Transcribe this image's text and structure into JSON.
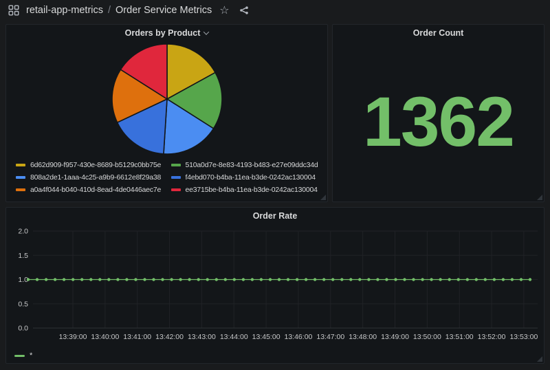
{
  "header": {
    "breadcrumb_folder": "retail-app-metrics",
    "breadcrumb_separator": "/",
    "breadcrumb_dashboard": "Order Service Metrics",
    "icons": [
      "apps-icon",
      "star-icon",
      "share-alt-icon"
    ]
  },
  "colors": {
    "page_bg": "#191b1d",
    "panel_bg": "#131619",
    "grid_line": "#202226",
    "axis_line": "#2c3235",
    "stat_green": "#73BF69"
  },
  "panels": {
    "orders_by_product": {
      "title": "Orders by Product",
      "chart_data": {
        "type": "pie",
        "title": "Orders by Product",
        "legend_position": "bottom",
        "slices": [
          {
            "label": "6d62d909-f957-430e-8689-b5129c0bb75e",
            "value": 17,
            "color": "#C9A514"
          },
          {
            "label": "510a0d7e-8e83-4193-b483-e27e09ddc34d",
            "value": 17,
            "color": "#56A64B"
          },
          {
            "label": "808a2de1-1aaa-4c25-a9b9-6612e8f29a38",
            "value": 17,
            "color": "#4B8DF2"
          },
          {
            "label": "f4ebd070-b4ba-11ea-b3de-0242ac130004",
            "value": 17,
            "color": "#3871DC"
          },
          {
            "label": "a0a4f044-b040-410d-8ead-4de0446aec7e",
            "value": 16,
            "color": "#DE700D"
          },
          {
            "label": "ee3715be-b4ba-11ea-b3de-0242ac130004",
            "value": 16,
            "color": "#E0273C"
          }
        ]
      }
    },
    "order_count": {
      "title": "Order Count",
      "value": "1362",
      "color": "#73BF69",
      "chart_data": {
        "type": "stat",
        "title": "Order Count",
        "value": 1362
      }
    },
    "order_rate": {
      "title": "Order Rate",
      "chart_data": {
        "type": "line",
        "title": "Order Rate",
        "series": [
          {
            "name": "*",
            "color": "#73BF69",
            "constant_value": 1.0
          }
        ],
        "num_points": 57,
        "ylim": [
          0.0,
          2.0
        ],
        "y_ticks": [
          "2.0",
          "1.5",
          "1.0",
          "0.5",
          "0.0"
        ],
        "y_tick_values": [
          2.0,
          1.5,
          1.0,
          0.5,
          0.0
        ],
        "x_ticks": [
          "13:39:00",
          "13:40:00",
          "13:41:00",
          "13:42:00",
          "13:43:00",
          "13:44:00",
          "13:45:00",
          "13:46:00",
          "13:47:00",
          "13:48:00",
          "13:49:00",
          "13:50:00",
          "13:51:00",
          "13:52:00",
          "13:53:00"
        ],
        "grid": true,
        "legend": {
          "label": "*",
          "color": "#73BF69",
          "position": "bottom-left"
        }
      }
    }
  }
}
